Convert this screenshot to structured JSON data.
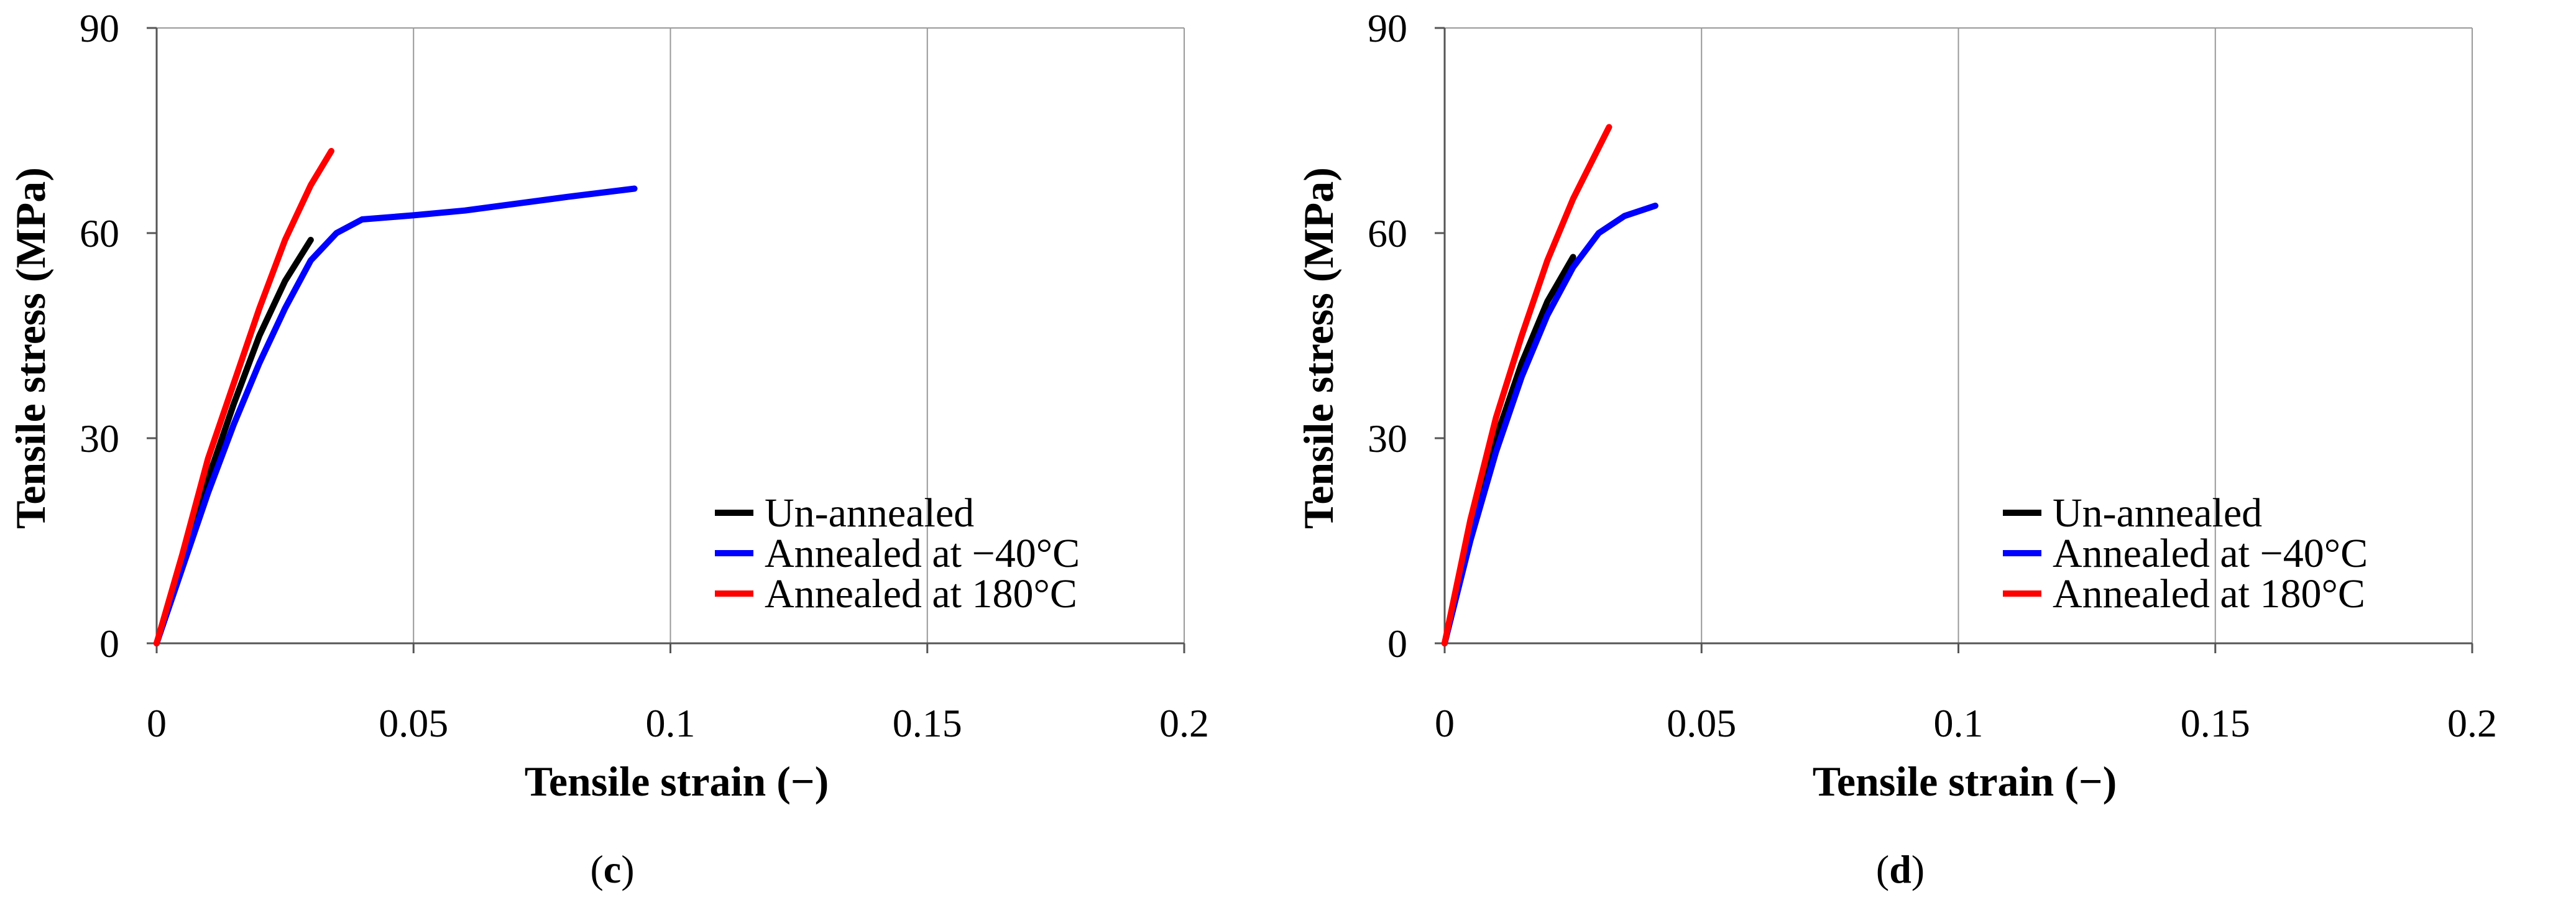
{
  "chart_data": [
    {
      "type": "line",
      "panel_label": "c",
      "caption_open": "(",
      "caption_close": ")",
      "xlabel": "Tensile strain (−)",
      "ylabel": "Tensile stress (MPa)",
      "xlim": [
        0,
        0.2
      ],
      "ylim": [
        0,
        90
      ],
      "xticks": [
        0,
        0.05,
        0.1,
        0.15,
        0.2
      ],
      "xtick_labels": [
        "0",
        "0.05",
        "0.1",
        "0.15",
        "0.2"
      ],
      "yticks": [
        0,
        30,
        60,
        90
      ],
      "ytick_labels": [
        "0",
        "30",
        "60",
        "90"
      ],
      "legend_position": "bottom-right",
      "series": [
        {
          "name": "Un-annealed",
          "color": "#000000",
          "x": [
            0,
            0.005,
            0.01,
            0.015,
            0.02,
            0.025,
            0.03
          ],
          "y": [
            0,
            12,
            24,
            35,
            45,
            53,
            59
          ]
        },
        {
          "name": "Annealed at −40°C",
          "color": "#0000ff",
          "x": [
            0,
            0.005,
            0.01,
            0.015,
            0.02,
            0.025,
            0.03,
            0.035,
            0.04,
            0.05,
            0.06,
            0.07,
            0.08,
            0.093
          ],
          "y": [
            0,
            11,
            22,
            32,
            41,
            49,
            56,
            60,
            62,
            62.6,
            63.3,
            64.3,
            65.3,
            66.5
          ]
        },
        {
          "name": "Annealed at 180°C",
          "color": "#ff0000",
          "x": [
            0,
            0.005,
            0.01,
            0.015,
            0.02,
            0.025,
            0.03,
            0.034
          ],
          "y": [
            0,
            13,
            27,
            38,
            49,
            59,
            67,
            72
          ]
        }
      ]
    },
    {
      "type": "line",
      "panel_label": "d",
      "caption_open": "(",
      "caption_close": ")",
      "xlabel": "Tensile strain (−)",
      "ylabel": "Tensile stress (MPa)",
      "xlim": [
        0,
        0.2
      ],
      "ylim": [
        0,
        90
      ],
      "xticks": [
        0,
        0.05,
        0.1,
        0.15,
        0.2
      ],
      "xtick_labels": [
        "0",
        "0.05",
        "0.1",
        "0.15",
        "0.2"
      ],
      "yticks": [
        0,
        30,
        60,
        90
      ],
      "ytick_labels": [
        "0",
        "30",
        "60",
        "90"
      ],
      "legend_position": "bottom-right",
      "series": [
        {
          "name": "Un-annealed",
          "color": "#000000",
          "x": [
            0,
            0.005,
            0.01,
            0.015,
            0.02,
            0.025
          ],
          "y": [
            0,
            16,
            30,
            41,
            50,
            56.5
          ]
        },
        {
          "name": "Annealed at −40°C",
          "color": "#0000ff",
          "x": [
            0,
            0.005,
            0.01,
            0.015,
            0.02,
            0.025,
            0.03,
            0.035,
            0.041
          ],
          "y": [
            0,
            15,
            28,
            39,
            48,
            55,
            60,
            62.5,
            64
          ]
        },
        {
          "name": "Annealed at 180°C",
          "color": "#ff0000",
          "x": [
            0,
            0.005,
            0.01,
            0.015,
            0.02,
            0.025,
            0.03,
            0.032
          ],
          "y": [
            0,
            18,
            33,
            45,
            56,
            65,
            72.5,
            75.5
          ]
        }
      ]
    }
  ]
}
